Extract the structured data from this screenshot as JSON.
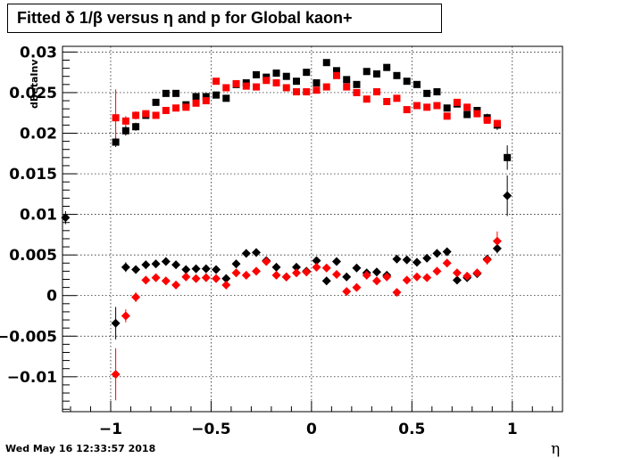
{
  "chart_data": {
    "type": "scatter",
    "title": "Fitted δ 1/β versus η and p for Global kaon+",
    "xlabel": "η",
    "ylabel": "dBetaInv",
    "xlim": [
      -1.24,
      1.25
    ],
    "ylim": [
      -0.0143,
      0.0307
    ],
    "grid": true,
    "x_ticks": [
      -1,
      -0.5,
      0,
      0.5,
      1
    ],
    "x_tick_labels": [
      "−1",
      "−0.5",
      "0",
      "0.5",
      "1"
    ],
    "y_ticks": [
      -0.01,
      -0.005,
      0,
      0.005,
      0.01,
      0.015,
      0.02,
      0.025,
      0.03
    ],
    "y_tick_labels": [
      "−0.01",
      "−0.005",
      "0",
      "0.005",
      "0.01",
      "0.015",
      "0.02",
      "0.025",
      "0.03"
    ],
    "series": [
      {
        "marker": "square",
        "color": "#000000",
        "x": [
          -0.975,
          -0.925,
          -0.875,
          -0.825,
          -0.775,
          -0.725,
          -0.675,
          -0.625,
          -0.575,
          -0.525,
          -0.475,
          -0.425,
          -0.375,
          -0.325,
          -0.275,
          -0.225,
          -0.175,
          -0.125,
          -0.075,
          -0.025,
          0.025,
          0.075,
          0.125,
          0.175,
          0.225,
          0.275,
          0.325,
          0.375,
          0.425,
          0.475,
          0.525,
          0.575,
          0.625,
          0.675,
          0.725,
          0.775,
          0.825,
          0.875,
          0.925,
          0.975
        ],
        "y": [
          0.0189,
          0.0203,
          0.0208,
          0.0222,
          0.0238,
          0.0249,
          0.0249,
          0.0235,
          0.0245,
          0.0245,
          0.0247,
          0.0243,
          0.026,
          0.0262,
          0.0272,
          0.0269,
          0.0274,
          0.027,
          0.0264,
          0.0275,
          0.0262,
          0.0287,
          0.0277,
          0.0266,
          0.026,
          0.0276,
          0.0273,
          0.0281,
          0.0271,
          0.0264,
          0.026,
          0.0249,
          0.0251,
          0.0231,
          0.0236,
          0.0223,
          0.0228,
          0.0219,
          0.021,
          0.017
        ],
        "err": [
          0.0006,
          0.0006,
          0.0005,
          0.0004,
          0.0004,
          0.0004,
          0.0004,
          0.0004,
          0.0004,
          0.0004,
          0.0004,
          0.0004,
          0.0004,
          0.0004,
          0.0004,
          0.0004,
          0.0004,
          0.0004,
          0.0004,
          0.0004,
          0.0004,
          0.0004,
          0.0004,
          0.0004,
          0.0004,
          0.0004,
          0.0004,
          0.0004,
          0.0004,
          0.0004,
          0.0004,
          0.0004,
          0.0004,
          0.0004,
          0.0004,
          0.0004,
          0.0004,
          0.0005,
          0.0006,
          0.0015
        ]
      },
      {
        "marker": "square",
        "color": "#ff0000",
        "x": [
          -0.975,
          -0.925,
          -0.875,
          -0.825,
          -0.775,
          -0.725,
          -0.675,
          -0.625,
          -0.575,
          -0.525,
          -0.475,
          -0.425,
          -0.375,
          -0.325,
          -0.275,
          -0.225,
          -0.175,
          -0.125,
          -0.075,
          -0.025,
          0.025,
          0.075,
          0.125,
          0.175,
          0.225,
          0.275,
          0.325,
          0.375,
          0.425,
          0.475,
          0.525,
          0.575,
          0.625,
          0.675,
          0.725,
          0.775,
          0.825,
          0.875,
          0.925
        ],
        "y": [
          0.0219,
          0.0215,
          0.0222,
          0.0224,
          0.0222,
          0.0228,
          0.0231,
          0.0232,
          0.0237,
          0.024,
          0.0264,
          0.0256,
          0.0261,
          0.0258,
          0.0257,
          0.0265,
          0.0262,
          0.0256,
          0.0251,
          0.0251,
          0.0253,
          0.0257,
          0.0271,
          0.0257,
          0.025,
          0.0242,
          0.0251,
          0.0239,
          0.0243,
          0.0229,
          0.0234,
          0.0232,
          0.0234,
          0.0221,
          0.0238,
          0.0232,
          0.0224,
          0.0216,
          0.0212
        ],
        "err": [
          0.0035,
          0.0006,
          0.0005,
          0.0004,
          0.0004,
          0.0004,
          0.0004,
          0.0004,
          0.0004,
          0.0004,
          0.0004,
          0.0004,
          0.0004,
          0.0004,
          0.0004,
          0.0004,
          0.0004,
          0.0004,
          0.0004,
          0.0004,
          0.0004,
          0.0004,
          0.0004,
          0.0004,
          0.0004,
          0.0004,
          0.0004,
          0.0004,
          0.0004,
          0.0004,
          0.0004,
          0.0004,
          0.0004,
          0.0004,
          0.0004,
          0.0004,
          0.0004,
          0.0004,
          0.0004
        ]
      },
      {
        "marker": "diamond",
        "color": "#000000",
        "x": [
          -1.225,
          -0.975,
          -0.925,
          -0.875,
          -0.825,
          -0.775,
          -0.725,
          -0.675,
          -0.625,
          -0.575,
          -0.525,
          -0.475,
          -0.425,
          -0.375,
          -0.325,
          -0.275,
          -0.225,
          -0.175,
          -0.125,
          -0.075,
          -0.025,
          0.025,
          0.075,
          0.125,
          0.175,
          0.225,
          0.275,
          0.325,
          0.375,
          0.425,
          0.475,
          0.525,
          0.575,
          0.625,
          0.675,
          0.725,
          0.775,
          0.825,
          0.875,
          0.925,
          0.975
        ],
        "y": [
          0.0096,
          -0.0034,
          0.0035,
          0.0032,
          0.0038,
          0.0039,
          0.0042,
          0.0038,
          0.0032,
          0.0033,
          0.0033,
          0.0032,
          0.0021,
          0.0039,
          0.0052,
          0.0053,
          0.0043,
          0.0035,
          0.0023,
          0.0035,
          0.003,
          0.0043,
          0.0018,
          0.0042,
          0.0023,
          0.0034,
          0.0028,
          0.0029,
          0.0025,
          0.0045,
          0.0044,
          0.0041,
          0.0046,
          0.0052,
          0.0054,
          0.0019,
          0.0022,
          0.0027,
          0.0045,
          0.0058,
          0.0123
        ],
        "err": [
          0.0008,
          0.002,
          0.0006,
          0.0005,
          0.0005,
          0.0005,
          0.0005,
          0.0005,
          0.0005,
          0.0005,
          0.0005,
          0.0005,
          0.0005,
          0.0005,
          0.0005,
          0.0005,
          0.0005,
          0.0005,
          0.0005,
          0.0005,
          0.0005,
          0.0005,
          0.0005,
          0.0005,
          0.0005,
          0.0005,
          0.0005,
          0.0005,
          0.0005,
          0.0005,
          0.0005,
          0.0005,
          0.0005,
          0.0005,
          0.0005,
          0.0005,
          0.0005,
          0.0005,
          0.0005,
          0.0006,
          0.0025
        ]
      },
      {
        "marker": "diamond",
        "color": "#ff0000",
        "x": [
          -0.975,
          -0.925,
          -0.875,
          -0.825,
          -0.775,
          -0.725,
          -0.675,
          -0.625,
          -0.575,
          -0.525,
          -0.475,
          -0.425,
          -0.375,
          -0.325,
          -0.275,
          -0.225,
          -0.175,
          -0.125,
          -0.075,
          -0.025,
          0.025,
          0.075,
          0.125,
          0.175,
          0.225,
          0.275,
          0.325,
          0.375,
          0.425,
          0.475,
          0.525,
          0.575,
          0.625,
          0.675,
          0.725,
          0.775,
          0.825,
          0.875,
          0.925
        ],
        "y": [
          -0.0097,
          -0.0025,
          -0.0002,
          0.0019,
          0.0022,
          0.0018,
          0.0013,
          0.0023,
          0.0021,
          0.0022,
          0.0021,
          0.0013,
          0.0028,
          0.0025,
          0.003,
          0.0042,
          0.0025,
          0.0023,
          0.0028,
          0.0029,
          0.0035,
          0.0034,
          0.0026,
          0.0005,
          0.001,
          0.0025,
          0.0018,
          0.0023,
          0.0004,
          0.0019,
          0.0023,
          0.0022,
          0.003,
          0.004,
          0.0028,
          0.0024,
          0.0028,
          0.0044,
          0.0067
        ],
        "err": [
          0.0032,
          0.0008,
          0.0006,
          0.0005,
          0.0005,
          0.0005,
          0.0005,
          0.0005,
          0.0005,
          0.0005,
          0.0005,
          0.0005,
          0.0005,
          0.0005,
          0.0005,
          0.0005,
          0.0005,
          0.0005,
          0.0005,
          0.0005,
          0.0005,
          0.0005,
          0.0005,
          0.0005,
          0.0005,
          0.0005,
          0.0005,
          0.0005,
          0.0005,
          0.0005,
          0.0005,
          0.0005,
          0.0005,
          0.0005,
          0.0005,
          0.0005,
          0.0005,
          0.0006,
          0.0012
        ]
      }
    ]
  },
  "footer": {
    "timestamp": "Wed May 16 12:33:57 2018"
  }
}
